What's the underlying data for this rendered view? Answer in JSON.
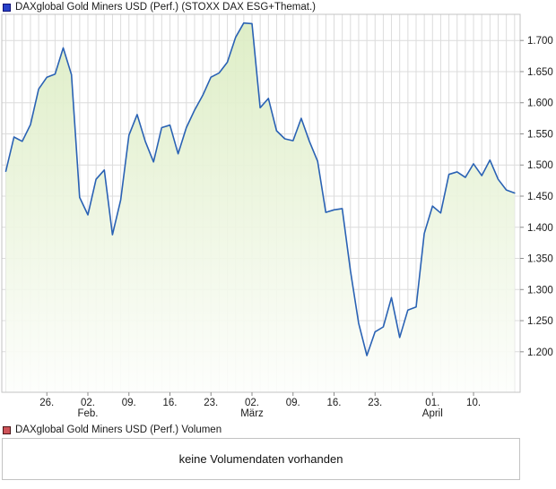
{
  "header": {
    "title": "DAXglobal Gold Miners USD (Perf.) (STOXX DAX ESG+Themat.)",
    "swatch_color": "#2741c9",
    "swatch_border": "#101074"
  },
  "volume_panel": {
    "title": "DAXglobal Gold Miners USD (Perf.) Volumen",
    "swatch_color": "#cf5359",
    "swatch_border": "#4a1517",
    "message": "keine Volumendaten vorhanden"
  },
  "chart_data": {
    "type": "area",
    "title": "DAXglobal Gold Miners USD (Perf.) (STOXX DAX ESG+Themat.)",
    "xlabel": "",
    "ylabel": "",
    "grid": true,
    "legend_position": "none",
    "axis_side": "right",
    "ylim": [
      1.135,
      1.742
    ],
    "x": [
      "2015-01-19",
      "2015-01-20",
      "2015-01-21",
      "2015-01-22",
      "2015-01-23",
      "2015-01-26",
      "2015-01-27",
      "2015-01-28",
      "2015-01-29",
      "2015-01-30",
      "2015-02-02",
      "2015-02-03",
      "2015-02-04",
      "2015-02-05",
      "2015-02-06",
      "2015-02-09",
      "2015-02-10",
      "2015-02-11",
      "2015-02-12",
      "2015-02-13",
      "2015-02-16",
      "2015-02-17",
      "2015-02-18",
      "2015-02-19",
      "2015-02-20",
      "2015-02-23",
      "2015-02-24",
      "2015-02-25",
      "2015-02-26",
      "2015-02-27",
      "2015-03-02",
      "2015-03-03",
      "2015-03-04",
      "2015-03-05",
      "2015-03-06",
      "2015-03-09",
      "2015-03-10",
      "2015-03-11",
      "2015-03-12",
      "2015-03-13",
      "2015-03-16",
      "2015-03-17",
      "2015-03-18",
      "2015-03-19",
      "2015-03-20",
      "2015-03-23",
      "2015-03-24",
      "2015-03-25",
      "2015-03-26",
      "2015-03-27",
      "2015-03-30",
      "2015-03-31",
      "2015-04-01",
      "2015-04-02",
      "2015-04-07",
      "2015-04-08",
      "2015-04-09",
      "2015-04-10",
      "2015-04-13",
      "2015-04-14",
      "2015-04-15",
      "2015-04-16",
      "2015-04-17"
    ],
    "values": [
      1.49,
      1.545,
      1.538,
      1.565,
      1.622,
      1.641,
      1.646,
      1.688,
      1.645,
      1.448,
      1.42,
      1.477,
      1.492,
      1.388,
      1.444,
      1.548,
      1.581,
      1.538,
      1.505,
      1.56,
      1.564,
      1.518,
      1.56,
      1.588,
      1.612,
      1.641,
      1.648,
      1.665,
      1.705,
      1.728,
      1.727,
      1.592,
      1.607,
      1.555,
      1.542,
      1.539,
      1.575,
      1.538,
      1.506,
      1.424,
      1.428,
      1.43,
      1.33,
      1.246,
      1.194,
      1.232,
      1.24,
      1.287,
      1.223,
      1.267,
      1.272,
      1.39,
      1.434,
      1.423,
      1.485,
      1.489,
      1.48,
      1.502,
      1.483,
      1.508,
      1.477,
      1.46,
      1.455
    ],
    "y_ticks": [
      {
        "label": "1.700",
        "value": 1.7
      },
      {
        "label": "1.650",
        "value": 1.65
      },
      {
        "label": "1.600",
        "value": 1.6
      },
      {
        "label": "1.550",
        "value": 1.55
      },
      {
        "label": "1.500",
        "value": 1.5
      },
      {
        "label": "1.450",
        "value": 1.45
      },
      {
        "label": "1.400",
        "value": 1.4
      },
      {
        "label": "1.350",
        "value": 1.35
      },
      {
        "label": "1.300",
        "value": 1.3
      },
      {
        "label": "1.250",
        "value": 1.25
      },
      {
        "label": "1.200",
        "value": 1.2
      }
    ],
    "x_ticks": [
      {
        "index": 5,
        "label": "26.",
        "sub": ""
      },
      {
        "index": 10,
        "label": "02.",
        "sub": "Feb."
      },
      {
        "index": 15,
        "label": "09.",
        "sub": ""
      },
      {
        "index": 20,
        "label": "16.",
        "sub": ""
      },
      {
        "index": 25,
        "label": "23.",
        "sub": ""
      },
      {
        "index": 30,
        "label": "02.",
        "sub": "März"
      },
      {
        "index": 35,
        "label": "09.",
        "sub": ""
      },
      {
        "index": 40,
        "label": "16.",
        "sub": ""
      },
      {
        "index": 45,
        "label": "23.",
        "sub": ""
      },
      {
        "index": 52,
        "label": "01.",
        "sub": "April"
      },
      {
        "index": 57,
        "label": "10.",
        "sub": ""
      }
    ],
    "colors": {
      "line": "#2a62b4",
      "area_top": "#dbecc1",
      "area_bottom": "#fdfefc",
      "grid": "#dcdcdc",
      "border": "#c3c3c3",
      "tick": "#8c8c8c",
      "label": "#1a1a1a"
    }
  }
}
